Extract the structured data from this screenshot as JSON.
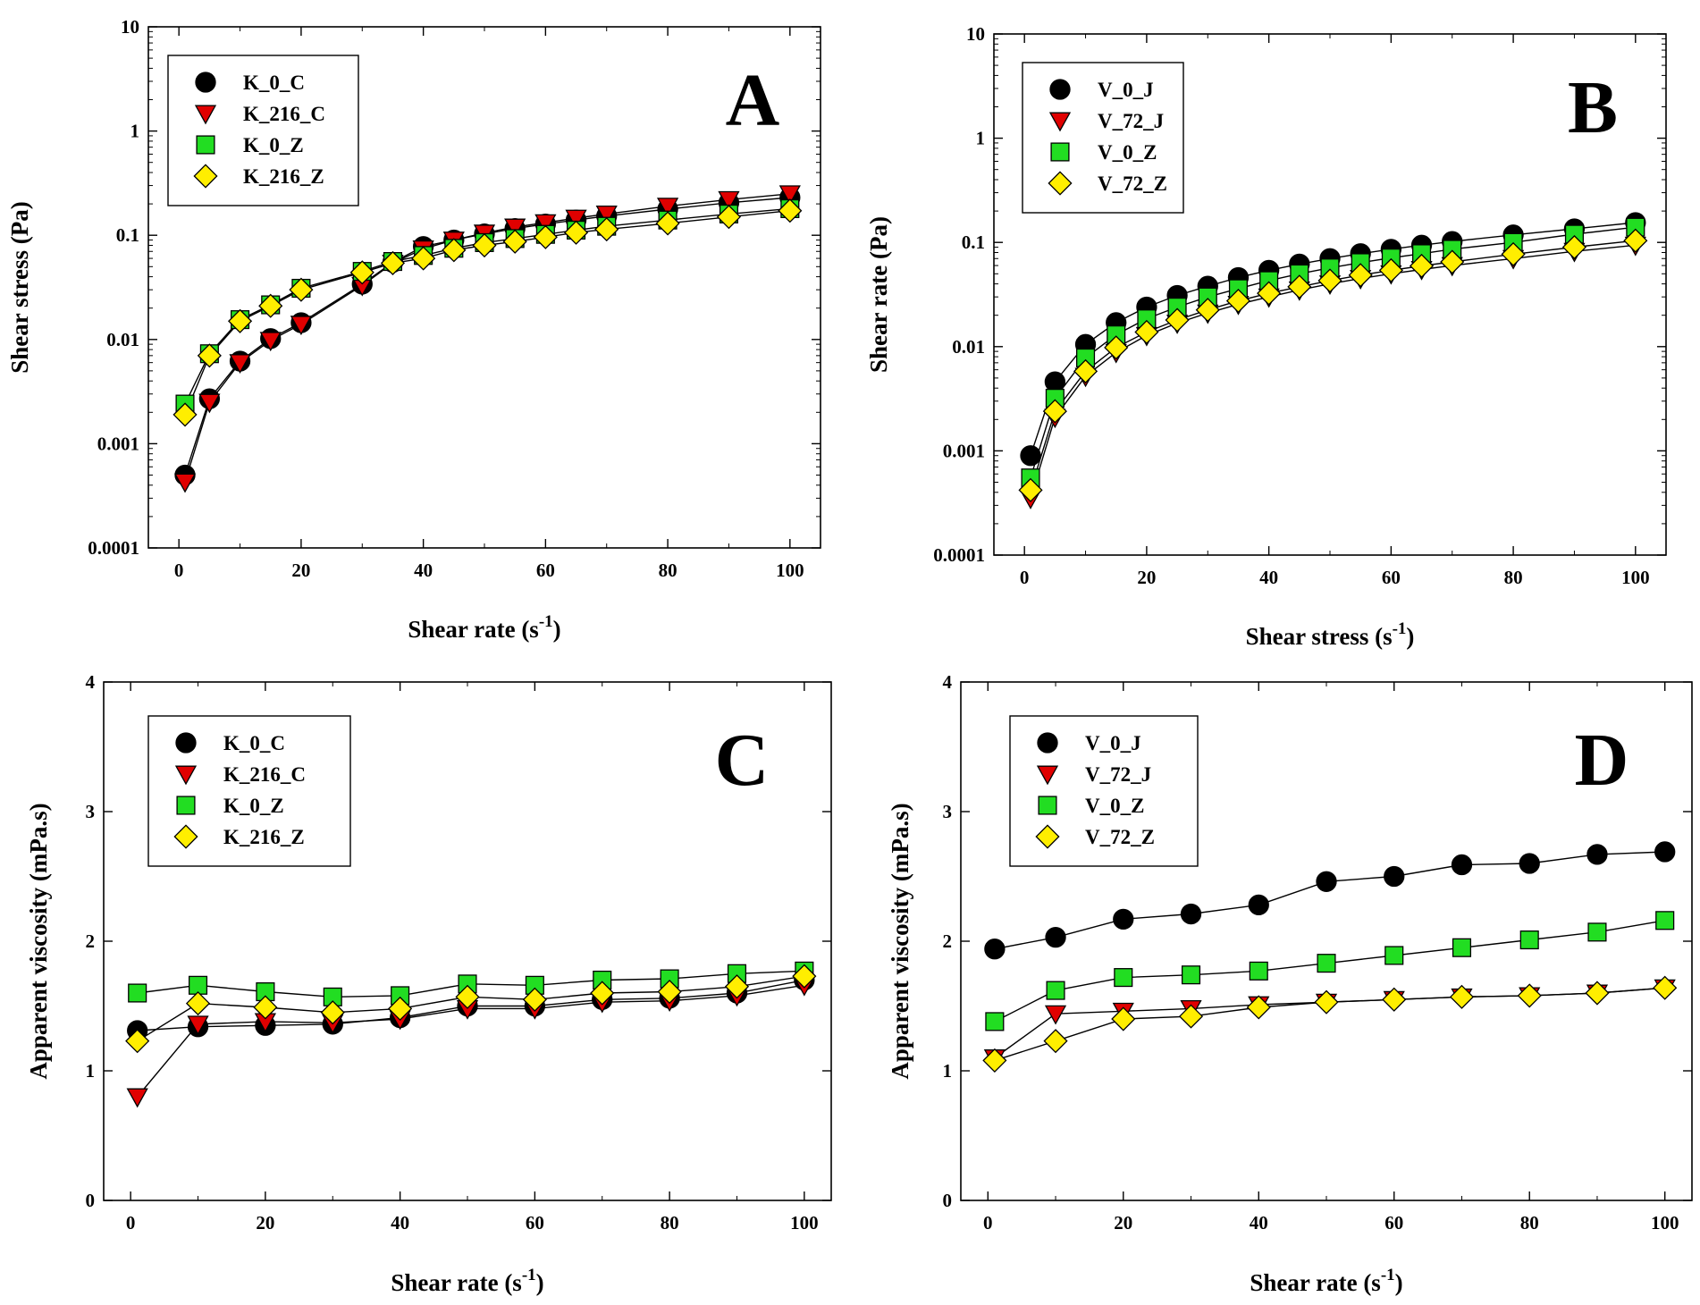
{
  "chart_data": [
    {
      "type": "line",
      "panel_label": "A",
      "xscale": "linear",
      "yscale": "log",
      "xlabel": "Shear rate (s",
      "xlabel_sup": "-1",
      "xlabel_suffix": ")",
      "ylabel": "Shear stress (Pa)",
      "xlim": [
        -5,
        105
      ],
      "ylim": [
        0.0001,
        10
      ],
      "xticks": [
        0,
        20,
        40,
        60,
        80,
        100
      ],
      "xtick_labels": [
        "0",
        "20",
        "40",
        "60",
        "80",
        "100"
      ],
      "yticks": [
        0.0001,
        0.001,
        0.01,
        0.1,
        1,
        10
      ],
      "ytick_labels": [
        "0.0001",
        "0.001",
        "0.01",
        "0.1",
        "1",
        "10"
      ],
      "legend_position": "top-left",
      "series": [
        {
          "name": "K_0_C",
          "marker": "circle",
          "color": "#000000",
          "x": [
            1,
            5,
            10,
            15,
            20,
            30,
            35,
            40,
            45,
            50,
            55,
            60,
            65,
            70,
            80,
            90,
            100
          ],
          "y": [
            0.0005,
            0.0027,
            0.0062,
            0.0102,
            0.0145,
            0.034,
            0.055,
            0.078,
            0.09,
            0.103,
            0.116,
            0.128,
            0.14,
            0.153,
            0.178,
            0.205,
            0.23
          ]
        },
        {
          "name": "K_216_C",
          "marker": "triangle-down",
          "color": "#e00000",
          "x": [
            1,
            5,
            10,
            15,
            20,
            30,
            35,
            40,
            45,
            50,
            55,
            60,
            65,
            70,
            80,
            90,
            100
          ],
          "y": [
            0.00043,
            0.0025,
            0.006,
            0.0098,
            0.014,
            0.033,
            0.054,
            0.074,
            0.09,
            0.105,
            0.12,
            0.132,
            0.146,
            0.16,
            0.19,
            0.22,
            0.25
          ]
        },
        {
          "name": "K_0_Z",
          "marker": "square",
          "color": "#22dd22",
          "x": [
            1,
            5,
            10,
            15,
            20,
            30,
            35,
            40,
            45,
            50,
            55,
            60,
            65,
            70,
            80,
            90,
            100
          ],
          "y": [
            0.0024,
            0.0073,
            0.0155,
            0.0215,
            0.031,
            0.045,
            0.056,
            0.064,
            0.075,
            0.085,
            0.093,
            0.102,
            0.112,
            0.122,
            0.14,
            0.16,
            0.18
          ]
        },
        {
          "name": "K_216_Z",
          "marker": "diamond",
          "color": "#ffee00",
          "x": [
            1,
            5,
            10,
            15,
            20,
            30,
            35,
            40,
            45,
            50,
            55,
            60,
            65,
            70,
            80,
            90,
            100
          ],
          "y": [
            0.0019,
            0.007,
            0.015,
            0.021,
            0.03,
            0.044,
            0.054,
            0.06,
            0.072,
            0.08,
            0.087,
            0.096,
            0.106,
            0.114,
            0.13,
            0.15,
            0.172
          ]
        }
      ]
    },
    {
      "type": "line",
      "panel_label": "B",
      "xscale": "linear",
      "yscale": "log",
      "xlabel": "Shear stress (s",
      "xlabel_sup": "-1",
      "xlabel_suffix": ")",
      "ylabel": "Shear rate (Pa)",
      "xlim": [
        -5,
        105
      ],
      "ylim": [
        0.0001,
        10
      ],
      "xticks": [
        0,
        20,
        40,
        60,
        80,
        100
      ],
      "xtick_labels": [
        "0",
        "20",
        "40",
        "60",
        "80",
        "100"
      ],
      "yticks": [
        0.0001,
        0.001,
        0.01,
        0.1,
        1,
        10
      ],
      "ytick_labels": [
        "0.0001",
        "0.001",
        "0.01",
        "0.1",
        "1",
        "10"
      ],
      "legend_position": "top-left",
      "series": [
        {
          "name": "V_0_J",
          "marker": "circle",
          "color": "#000000",
          "x": [
            1,
            5,
            10,
            15,
            20,
            25,
            30,
            35,
            40,
            45,
            50,
            55,
            60,
            65,
            70,
            80,
            90,
            100
          ],
          "y": [
            0.0009,
            0.0046,
            0.0105,
            0.017,
            0.024,
            0.031,
            0.038,
            0.046,
            0.054,
            0.062,
            0.07,
            0.078,
            0.086,
            0.094,
            0.102,
            0.118,
            0.135,
            0.155
          ]
        },
        {
          "name": "V_72_J",
          "marker": "triangle-down",
          "color": "#e00000",
          "x": [
            1,
            5,
            10,
            15,
            20,
            25,
            30,
            35,
            40,
            45,
            50,
            55,
            60,
            65,
            70,
            80,
            90,
            100
          ],
          "y": [
            0.00035,
            0.0021,
            0.0052,
            0.0088,
            0.0128,
            0.0168,
            0.021,
            0.0255,
            0.03,
            0.035,
            0.04,
            0.045,
            0.05,
            0.055,
            0.06,
            0.07,
            0.082,
            0.094
          ]
        },
        {
          "name": "V_0_Z",
          "marker": "square",
          "color": "#22dd22",
          "x": [
            1,
            5,
            10,
            15,
            20,
            25,
            30,
            35,
            40,
            45,
            50,
            55,
            60,
            65,
            70,
            80,
            90,
            100
          ],
          "y": [
            0.00055,
            0.0032,
            0.0078,
            0.013,
            0.0185,
            0.024,
            0.03,
            0.036,
            0.043,
            0.05,
            0.057,
            0.064,
            0.071,
            0.078,
            0.086,
            0.1,
            0.12,
            0.14
          ]
        },
        {
          "name": "V_72_Z",
          "marker": "diamond",
          "color": "#ffee00",
          "x": [
            1,
            5,
            10,
            15,
            20,
            25,
            30,
            35,
            40,
            45,
            50,
            55,
            60,
            65,
            70,
            80,
            90,
            100
          ],
          "y": [
            0.00042,
            0.0024,
            0.0058,
            0.0098,
            0.0138,
            0.018,
            0.0225,
            0.0275,
            0.0325,
            0.0375,
            0.043,
            0.0485,
            0.054,
            0.0595,
            0.065,
            0.077,
            0.09,
            0.104
          ]
        }
      ]
    },
    {
      "type": "line",
      "panel_label": "C",
      "xscale": "linear",
      "yscale": "linear",
      "xlabel": "Shear rate (s",
      "xlabel_sup": "-1",
      "xlabel_suffix": ")",
      "ylabel": "Apparent viscosity (mPa.s)",
      "xlim": [
        -4,
        104
      ],
      "ylim": [
        0,
        4
      ],
      "xticks": [
        0,
        20,
        40,
        60,
        80,
        100
      ],
      "xtick_labels": [
        "0",
        "20",
        "40",
        "60",
        "80",
        "100"
      ],
      "yticks": [
        0,
        1,
        2,
        3,
        4
      ],
      "ytick_labels": [
        "0",
        "1",
        "2",
        "3",
        "4"
      ],
      "legend_position": "top-left",
      "series": [
        {
          "name": "K_0_C",
          "marker": "circle",
          "color": "#000000",
          "x": [
            1,
            10,
            20,
            30,
            40,
            50,
            60,
            70,
            80,
            90,
            100
          ],
          "y": [
            1.31,
            1.34,
            1.35,
            1.36,
            1.41,
            1.5,
            1.5,
            1.55,
            1.56,
            1.6,
            1.7
          ]
        },
        {
          "name": "K_216_C",
          "marker": "triangle-down",
          "color": "#e00000",
          "x": [
            1,
            10,
            20,
            30,
            40,
            50,
            60,
            70,
            80,
            90,
            100
          ],
          "y": [
            0.8,
            1.36,
            1.38,
            1.37,
            1.4,
            1.48,
            1.48,
            1.53,
            1.54,
            1.58,
            1.66
          ]
        },
        {
          "name": "K_0_Z",
          "marker": "square",
          "color": "#22dd22",
          "x": [
            1,
            10,
            20,
            30,
            40,
            50,
            60,
            70,
            80,
            90,
            100
          ],
          "y": [
            1.6,
            1.66,
            1.61,
            1.57,
            1.58,
            1.67,
            1.66,
            1.7,
            1.71,
            1.75,
            1.77
          ]
        },
        {
          "name": "K_216_Z",
          "marker": "diamond",
          "color": "#ffee00",
          "x": [
            1,
            10,
            20,
            30,
            40,
            50,
            60,
            70,
            80,
            90,
            100
          ],
          "y": [
            1.23,
            1.52,
            1.49,
            1.45,
            1.48,
            1.57,
            1.55,
            1.6,
            1.61,
            1.65,
            1.73
          ]
        }
      ]
    },
    {
      "type": "line",
      "panel_label": "D",
      "xscale": "linear",
      "yscale": "linear",
      "xlabel": "Shear rate (s",
      "xlabel_sup": "-1",
      "xlabel_suffix": ")",
      "ylabel": "Apparent viscosity (mPa.s)",
      "xlim": [
        -4,
        104
      ],
      "ylim": [
        0,
        4
      ],
      "xticks": [
        0,
        20,
        40,
        60,
        80,
        100
      ],
      "xtick_labels": [
        "0",
        "20",
        "40",
        "60",
        "80",
        "100"
      ],
      "yticks": [
        0,
        1,
        2,
        3,
        4
      ],
      "ytick_labels": [
        "0",
        "1",
        "2",
        "3",
        "4"
      ],
      "legend_position": "top-left",
      "series": [
        {
          "name": "V_0_J",
          "marker": "circle",
          "color": "#000000",
          "x": [
            1,
            10,
            20,
            30,
            40,
            50,
            60,
            70,
            80,
            90,
            100
          ],
          "y": [
            1.94,
            2.03,
            2.17,
            2.21,
            2.28,
            2.46,
            2.5,
            2.59,
            2.6,
            2.67,
            2.69
          ]
        },
        {
          "name": "V_72_J",
          "marker": "triangle-down",
          "color": "#e00000",
          "x": [
            1,
            10,
            20,
            30,
            40,
            50,
            60,
            70,
            80,
            90,
            100
          ],
          "y": [
            1.1,
            1.44,
            1.46,
            1.48,
            1.51,
            1.53,
            1.55,
            1.57,
            1.58,
            1.6,
            1.64
          ]
        },
        {
          "name": "V_0_Z",
          "marker": "square",
          "color": "#22dd22",
          "x": [
            1,
            10,
            20,
            30,
            40,
            50,
            60,
            70,
            80,
            90,
            100
          ],
          "y": [
            1.38,
            1.62,
            1.72,
            1.74,
            1.77,
            1.83,
            1.89,
            1.95,
            2.01,
            2.07,
            2.16
          ]
        },
        {
          "name": "V_72_Z",
          "marker": "diamond",
          "color": "#ffee00",
          "x": [
            1,
            10,
            20,
            30,
            40,
            50,
            60,
            70,
            80,
            90,
            100
          ],
          "y": [
            1.08,
            1.23,
            1.4,
            1.42,
            1.49,
            1.53,
            1.55,
            1.57,
            1.58,
            1.6,
            1.64
          ]
        }
      ]
    }
  ]
}
